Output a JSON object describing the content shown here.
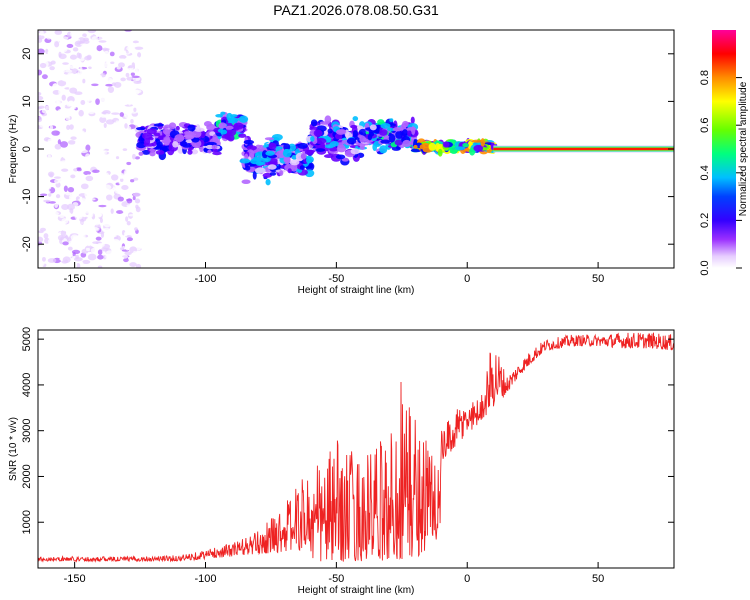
{
  "title": "PAZ1.2026.078.08.50.G31",
  "colors": {
    "line": "#ee2222",
    "axis": "#000000",
    "colormap": [
      "#ffffff",
      "#e6ccff",
      "#b266ff",
      "#6600ff",
      "#0000ff",
      "#00bfff",
      "#00ff7f",
      "#66ff00",
      "#ffff00",
      "#ff8c00",
      "#ff0000",
      "#ff00aa"
    ]
  },
  "chart_data": [
    {
      "type": "heatmap",
      "name": "spectrogram",
      "title": "PAZ1.2026.078.08.50.G31",
      "xlabel": "Height of straight line (km)",
      "ylabel": "Frequency (Hz)",
      "xlim": [
        -164,
        79
      ],
      "ylim": [
        -25,
        25
      ],
      "x_ticks": [
        -150,
        -100,
        -50,
        0,
        50
      ],
      "y_ticks": [
        -20,
        -10,
        0,
        10,
        20
      ],
      "colorbar": {
        "label": "Normalized spectral amplitude",
        "range": [
          0,
          1
        ],
        "ticks": [
          0.0,
          0.2,
          0.4,
          0.6,
          0.8
        ]
      },
      "signal_band": [
        {
          "x_range": [
            -164,
            -125
          ],
          "freq_center": 0,
          "freq_spread": 25,
          "amplitude": 0.2,
          "note": "scattered noise"
        },
        {
          "x_range": [
            -125,
            -95
          ],
          "freq_center": 2,
          "freq_spread": 3,
          "amplitude": 0.35
        },
        {
          "x_range": [
            -95,
            -85
          ],
          "freq_center": 5,
          "freq_spread": 3,
          "amplitude": 0.45
        },
        {
          "x_range": [
            -85,
            -60
          ],
          "freq_center": -2,
          "freq_spread": 4,
          "amplitude": 0.4
        },
        {
          "x_range": [
            -60,
            -40
          ],
          "freq_center": 2,
          "freq_spread": 4,
          "amplitude": 0.4
        },
        {
          "x_range": [
            -40,
            -20
          ],
          "freq_center": 3,
          "freq_spread": 3,
          "amplitude": 0.45
        },
        {
          "x_range": [
            -20,
            10
          ],
          "freq_center": 0.5,
          "freq_spread": 1,
          "amplitude": 0.7
        },
        {
          "x_range": [
            10,
            79
          ],
          "freq_center": 0,
          "freq_spread": 0.5,
          "amplitude": 1.0,
          "note": "strong narrow carrier"
        }
      ]
    },
    {
      "type": "line",
      "name": "snr",
      "xlabel": "Height of straight line (km)",
      "ylabel": "SNR (10 * v/v)",
      "xlim": [
        -164,
        79
      ],
      "ylim": [
        0,
        5200
      ],
      "x_ticks": [
        -150,
        -100,
        -50,
        0,
        50
      ],
      "y_ticks": [
        1000,
        2000,
        3000,
        4000,
        5000
      ],
      "series": [
        {
          "name": "SNR",
          "x": [
            -164,
            -150,
            -130,
            -110,
            -100,
            -90,
            -80,
            -70,
            -60,
            -50,
            -40,
            -30,
            -25,
            -20,
            -15,
            -10,
            -5,
            0,
            5,
            10,
            15,
            20,
            25,
            30,
            40,
            50,
            60,
            70,
            79
          ],
          "baseline": [
            150,
            150,
            150,
            150,
            200,
            250,
            300,
            350,
            400,
            450,
            500,
            550,
            600,
            700,
            1400,
            2200,
            2600,
            2900,
            3200,
            3500,
            3800,
            4200,
            4500,
            4750,
            4850,
            4850,
            4800,
            4800,
            4750
          ],
          "peak": [
            250,
            250,
            250,
            280,
            400,
            550,
            800,
            1400,
            2200,
            2800,
            2500,
            2900,
            4600,
            3500,
            3000,
            3000,
            3400,
            3700,
            3700,
            5100,
            4200,
            4500,
            4800,
            5000,
            5100,
            5100,
            5150,
            5150,
            5100
          ]
        }
      ]
    }
  ]
}
